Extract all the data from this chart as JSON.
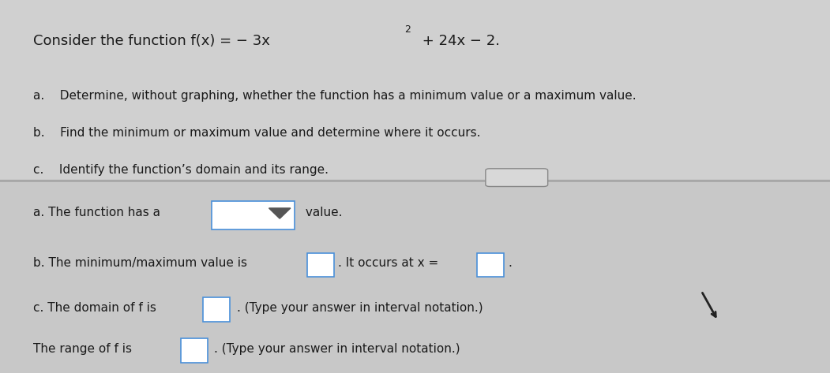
{
  "bg_color_top": "#d0d0d0",
  "bg_color_bottom": "#c8c8c8",
  "title_line": "Consider the function f(x) = − 3x",
  "title_super": "2",
  "title_rest": " + 24x − 2.",
  "items": [
    "a.    Determine, without graphing, whether the function has a minimum value or a maximum value.",
    "b.    Find the minimum or maximum value and determine where it occurs.",
    "c.    Identify the function’s domain and its range."
  ],
  "line_a": "a. The function has a ",
  "line_a_suffix": " value.",
  "line_b": "b. The minimum/maximum value is ",
  "line_b_mid": ". It occurs at x = ",
  "line_b_end": ".",
  "line_c1": "c. The domain of f is ",
  "line_c1_suffix": ". (Type your answer in interval notation.)",
  "line_c2": "The range of f is ",
  "line_c2_suffix": ". (Type your answer in interval notation.)",
  "dots_label": "...",
  "separator_color": "#888888",
  "text_color": "#1a1a1a",
  "box_color": "#ffffff",
  "box_border": "#4a90d9"
}
